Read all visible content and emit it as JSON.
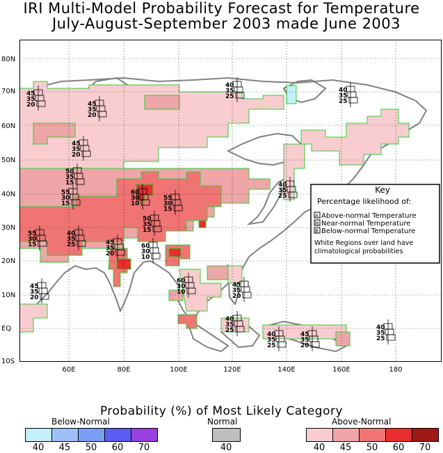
{
  "title": {
    "line1": "IRI Multi-Model Probability Forecast for Temperature",
    "line2": "July-August-September 2003 made June 2003"
  },
  "map": {
    "lat_labels": [
      "80N",
      "70N",
      "60N",
      "50N",
      "40N",
      "30N",
      "20N",
      "10N",
      "EQ",
      "10S"
    ],
    "lon_labels": [
      "60E",
      "80E",
      "100E",
      "120E",
      "140E",
      "160E",
      "180"
    ],
    "colors": {
      "ocean": "#ffffff",
      "land_outline": "#808080",
      "region_border": "#33cc33",
      "grid": "#000000",
      "above_40": "#f9cdd0",
      "above_45": "#eea6a8",
      "above_50": "#f07474",
      "above_60": "#e82e2e",
      "above_70": "#a11818",
      "below_40": "#c4eefa"
    },
    "probability_stacks": [
      {
        "values": [
          "45",
          "35",
          "20"
        ]
      },
      {
        "values": [
          "45",
          "35",
          "20"
        ]
      },
      {
        "values": [
          "40",
          "35",
          "25"
        ]
      },
      {
        "values": [
          "40",
          "35",
          "25"
        ]
      },
      {
        "values": [
          "45",
          "35",
          "20"
        ]
      },
      {
        "values": [
          "50",
          "35",
          "15"
        ]
      },
      {
        "values": [
          "55",
          "30",
          "15"
        ]
      },
      {
        "values": [
          "60",
          "30",
          "10"
        ]
      },
      {
        "values": [
          "55",
          "30",
          "15"
        ]
      },
      {
        "values": [
          "40",
          "35",
          "25"
        ]
      },
      {
        "values": [
          "50",
          "35",
          "15"
        ]
      },
      {
        "values": [
          "55",
          "30",
          "15"
        ]
      },
      {
        "values": [
          "40",
          "35",
          "25"
        ]
      },
      {
        "values": [
          "60",
          "30",
          "10"
        ]
      },
      {
        "values": [
          "60",
          "30",
          "10"
        ]
      },
      {
        "values": [
          "45",
          "35",
          "20"
        ]
      },
      {
        "values": [
          "45",
          "35",
          "20"
        ]
      },
      {
        "values": [
          "45",
          "35",
          "20"
        ]
      },
      {
        "values": [
          "40",
          "35",
          "25"
        ]
      },
      {
        "values": [
          "40",
          "35",
          "25"
        ]
      },
      {
        "values": [
          "45",
          "35",
          "20"
        ]
      },
      {
        "values": [
          "40",
          "35",
          "25"
        ]
      }
    ]
  },
  "key": {
    "title": "Key",
    "subtitle": "Percentage likelihood of:",
    "items": [
      {
        "letter": "A",
        "label": "Above-normal Temperature"
      },
      {
        "letter": "N",
        "label": "Near-normal Temperature"
      },
      {
        "letter": "B",
        "label": "Below-normal Temperature"
      }
    ],
    "note_line1": "White Regions over land have",
    "note_line2": "climatological probabilities"
  },
  "legend": {
    "title": "Probability (%) of Most Likely Category",
    "below_label": "Below-Normal",
    "normal_label": "Normal",
    "above_label": "Above-Normal",
    "below_ticks": [
      "40",
      "45",
      "50",
      "60",
      "70"
    ],
    "normal_ticks": [
      "40"
    ],
    "above_ticks": [
      "40",
      "45",
      "50",
      "60",
      "70"
    ],
    "below_colors": [
      "#c4eefa",
      "#9dc1f7",
      "#7a9ef3",
      "#5c5bf2",
      "#9940e0"
    ],
    "normal_colors": [
      "#bebebe"
    ],
    "above_colors": [
      "#f9cdd0",
      "#eea6a8",
      "#f07474",
      "#e82e2e",
      "#a11818"
    ]
  }
}
